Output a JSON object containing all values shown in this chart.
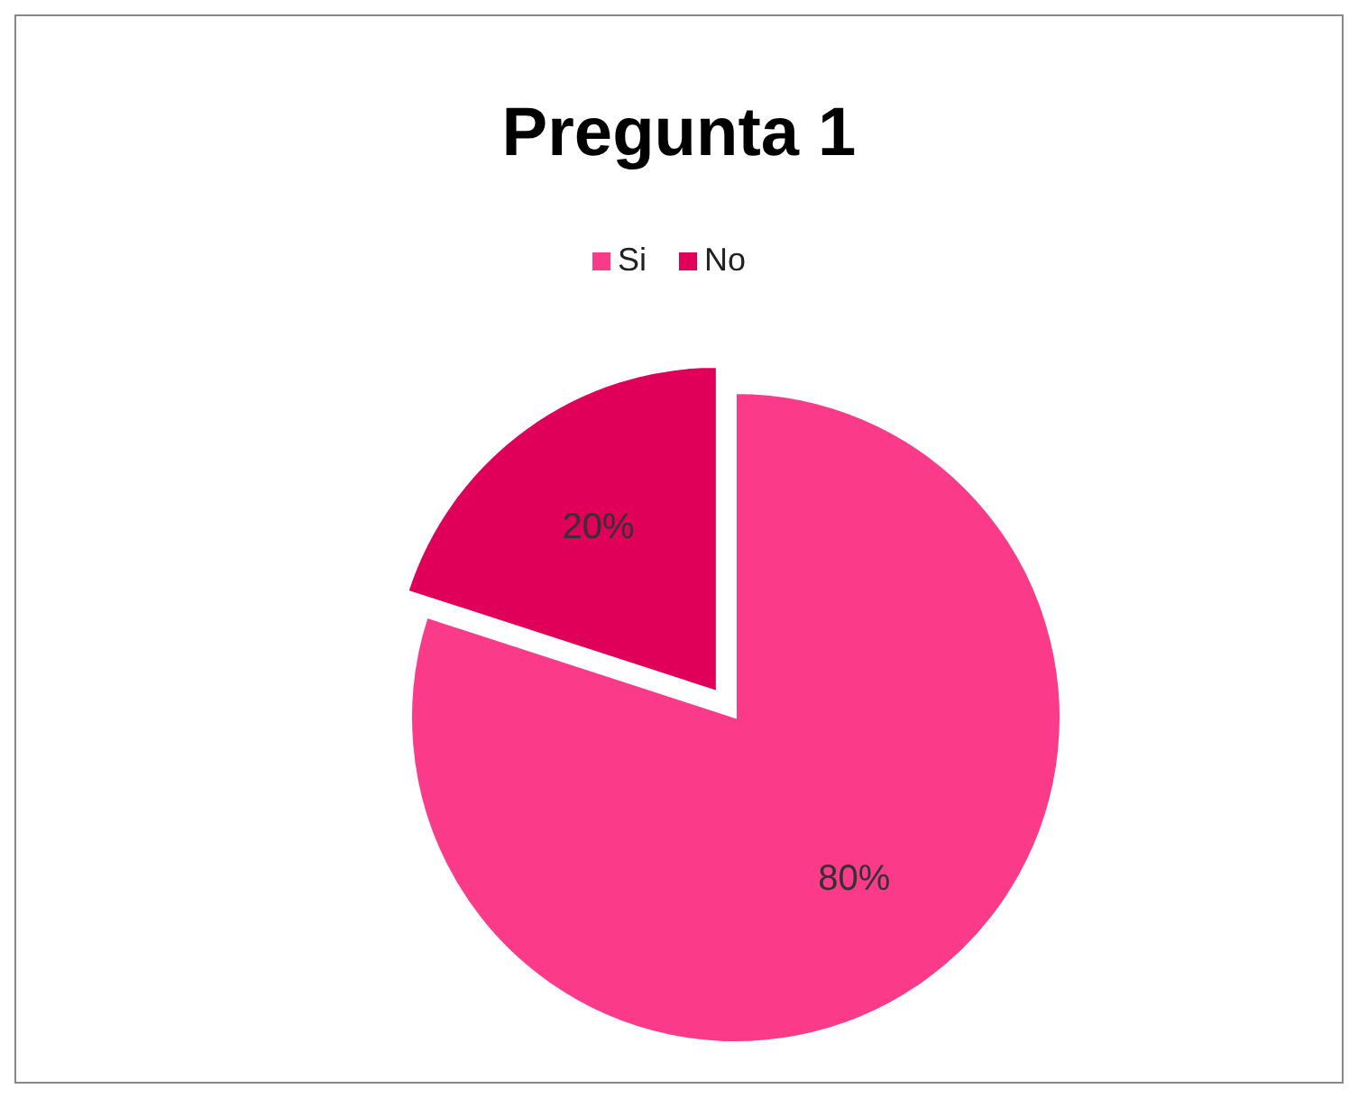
{
  "chart_data": {
    "type": "pie",
    "title": "Pregunta 1",
    "categories": [
      "Si",
      "No"
    ],
    "values": [
      80,
      20
    ],
    "colors": [
      "#fc3a8a",
      "#e0005a"
    ],
    "value_labels": [
      "80%",
      "20%"
    ],
    "legend": "top"
  }
}
